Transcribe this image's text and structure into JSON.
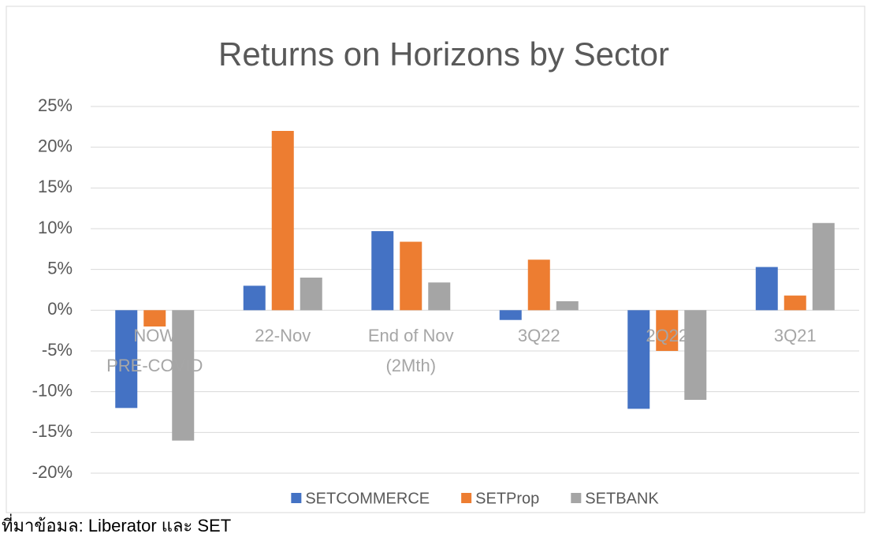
{
  "chart_data": {
    "type": "bar",
    "title": "Returns on Horizons by Sector",
    "source": "ที่มาข้อมล: Liberator และ SET",
    "categories": [
      "NOW PRE-COVID",
      "22-Nov",
      "End of Nov (2Mth)",
      "3Q22",
      "2Q22",
      "3Q21"
    ],
    "series": [
      {
        "name": "SETCOMMERCE",
        "color": "#4472c4",
        "values": [
          -12,
          3,
          9.7,
          -1.2,
          -12.1,
          5.3
        ]
      },
      {
        "name": "SETProp",
        "color": "#ed7d31",
        "values": [
          -2,
          22,
          8.4,
          6.2,
          -5,
          1.8
        ]
      },
      {
        "name": "SETBANK",
        "color": "#a5a5a5",
        "values": [
          -16,
          4,
          3.4,
          1.1,
          -11,
          10.7
        ]
      }
    ],
    "ylim": [
      -20,
      25
    ],
    "yticks": [
      {
        "value": -20,
        "label": "-20%"
      },
      {
        "value": -15,
        "label": "-15%"
      },
      {
        "value": -10,
        "label": "-10%"
      },
      {
        "value": -5,
        "label": "-5%"
      },
      {
        "value": 0,
        "label": "0%"
      },
      {
        "value": 5,
        "label": "5%"
      },
      {
        "value": 10,
        "label": "10%"
      },
      {
        "value": 15,
        "label": "15%"
      },
      {
        "value": 20,
        "label": "20%"
      },
      {
        "value": 25,
        "label": "25%"
      }
    ],
    "grid": true,
    "legend": "bottom"
  }
}
